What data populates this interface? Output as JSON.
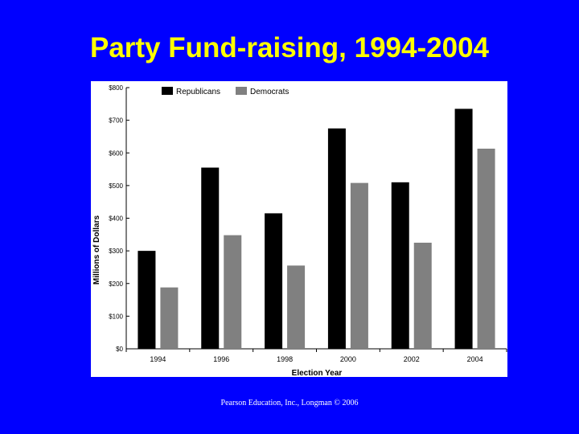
{
  "slide": {
    "title": "Party Fund-raising, 1994-2004",
    "footer": "Pearson Education, Inc., Longman © 2006"
  },
  "colors": {
    "background": "#0000ff",
    "title": "#ffff00",
    "republicans": "#000000",
    "democrats": "#808080"
  },
  "chart_data": {
    "type": "bar",
    "categories": [
      "1994",
      "1996",
      "1998",
      "2000",
      "2002",
      "2004"
    ],
    "series": [
      {
        "name": "Republicans",
        "values": [
          300,
          555,
          415,
          675,
          510,
          735
        ]
      },
      {
        "name": "Democrats",
        "values": [
          188,
          348,
          255,
          508,
          325,
          613
        ]
      }
    ],
    "xlabel": "Election Year",
    "ylabel": "Millions of Dollars",
    "ylim": [
      0,
      800
    ],
    "yticks": [
      0,
      100,
      200,
      300,
      400,
      500,
      600,
      700,
      800
    ],
    "ytick_labels": [
      "$0",
      "$100",
      "$200",
      "$300",
      "$400",
      "$500",
      "$600",
      "$700",
      "$800"
    ],
    "legend_position": "top-left",
    "grid": false
  }
}
